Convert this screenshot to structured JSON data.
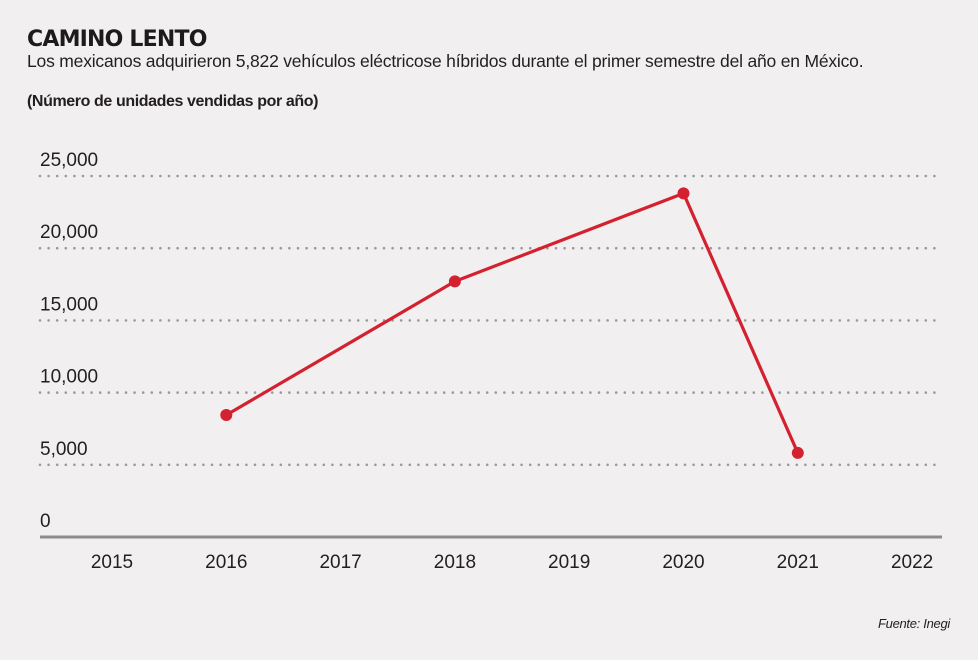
{
  "header": {
    "title": "CAMINO LENTO",
    "subtitle": "Los mexicanos adquirieron 5,822 vehículos eléctricose híbridos durante el primer semestre del año en México.",
    "units": "(Número de unidades vendidas por año)"
  },
  "footer": {
    "source": "Fuente: Inegi"
  },
  "colors": {
    "line": "#d42130",
    "grid": "#9a9a9a",
    "axis": "#8c8c8c",
    "background": "#f1efef"
  },
  "chart_data": {
    "type": "line",
    "title": "CAMINO LENTO",
    "subtitle": "Los mexicanos adquirieron 5,822 vehículos eléctricose híbridos durante el primer semestre del año en México.",
    "ylabel": "(Número de unidades vendidas por año)",
    "xlabel": "",
    "categories": [
      "2015",
      "2016",
      "2017",
      "2018",
      "2019",
      "2020",
      "2021",
      "2022"
    ],
    "series": [
      {
        "name": "Unidades vendidas",
        "points": [
          {
            "x": "2016",
            "y": 8450
          },
          {
            "x": "2018",
            "y": 17700
          },
          {
            "x": "2020",
            "y": 23800
          },
          {
            "x": "2021",
            "y": 5822
          }
        ]
      }
    ],
    "ylim": [
      0,
      25000
    ],
    "yticks": [
      0,
      5000,
      10000,
      15000,
      20000,
      25000
    ],
    "ytick_labels": [
      "0",
      "5,000",
      "10,000",
      "15,000",
      "20,000",
      "25,000"
    ],
    "grid": "horizontal-dotted",
    "legend": "none",
    "source": "Fuente: Inegi"
  }
}
